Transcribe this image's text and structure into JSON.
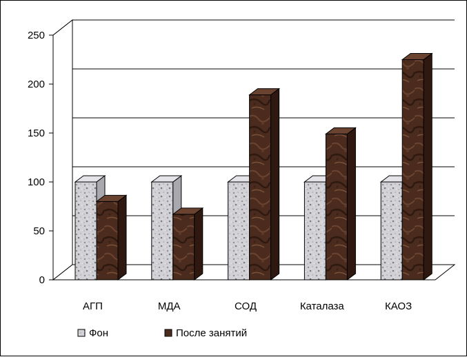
{
  "chart_data": {
    "type": "bar",
    "categories": [
      "АГП",
      "МДА",
      "СОД",
      "Каталаза",
      "КАОЗ"
    ],
    "series": [
      {
        "name": "Фон",
        "values": [
          100,
          100,
          100,
          100,
          100
        ],
        "color": "#c8c8cc"
      },
      {
        "name": "После занятий",
        "values": [
          80,
          67,
          189,
          149,
          225
        ],
        "color": "#4a2a1c"
      }
    ],
    "ylim": [
      0,
      250
    ],
    "yticks": [
      0,
      50,
      100,
      150,
      200,
      250
    ],
    "grid": true,
    "three_d": true,
    "legend_position": "bottom-left",
    "title": "",
    "xlabel": "",
    "ylabel": ""
  }
}
